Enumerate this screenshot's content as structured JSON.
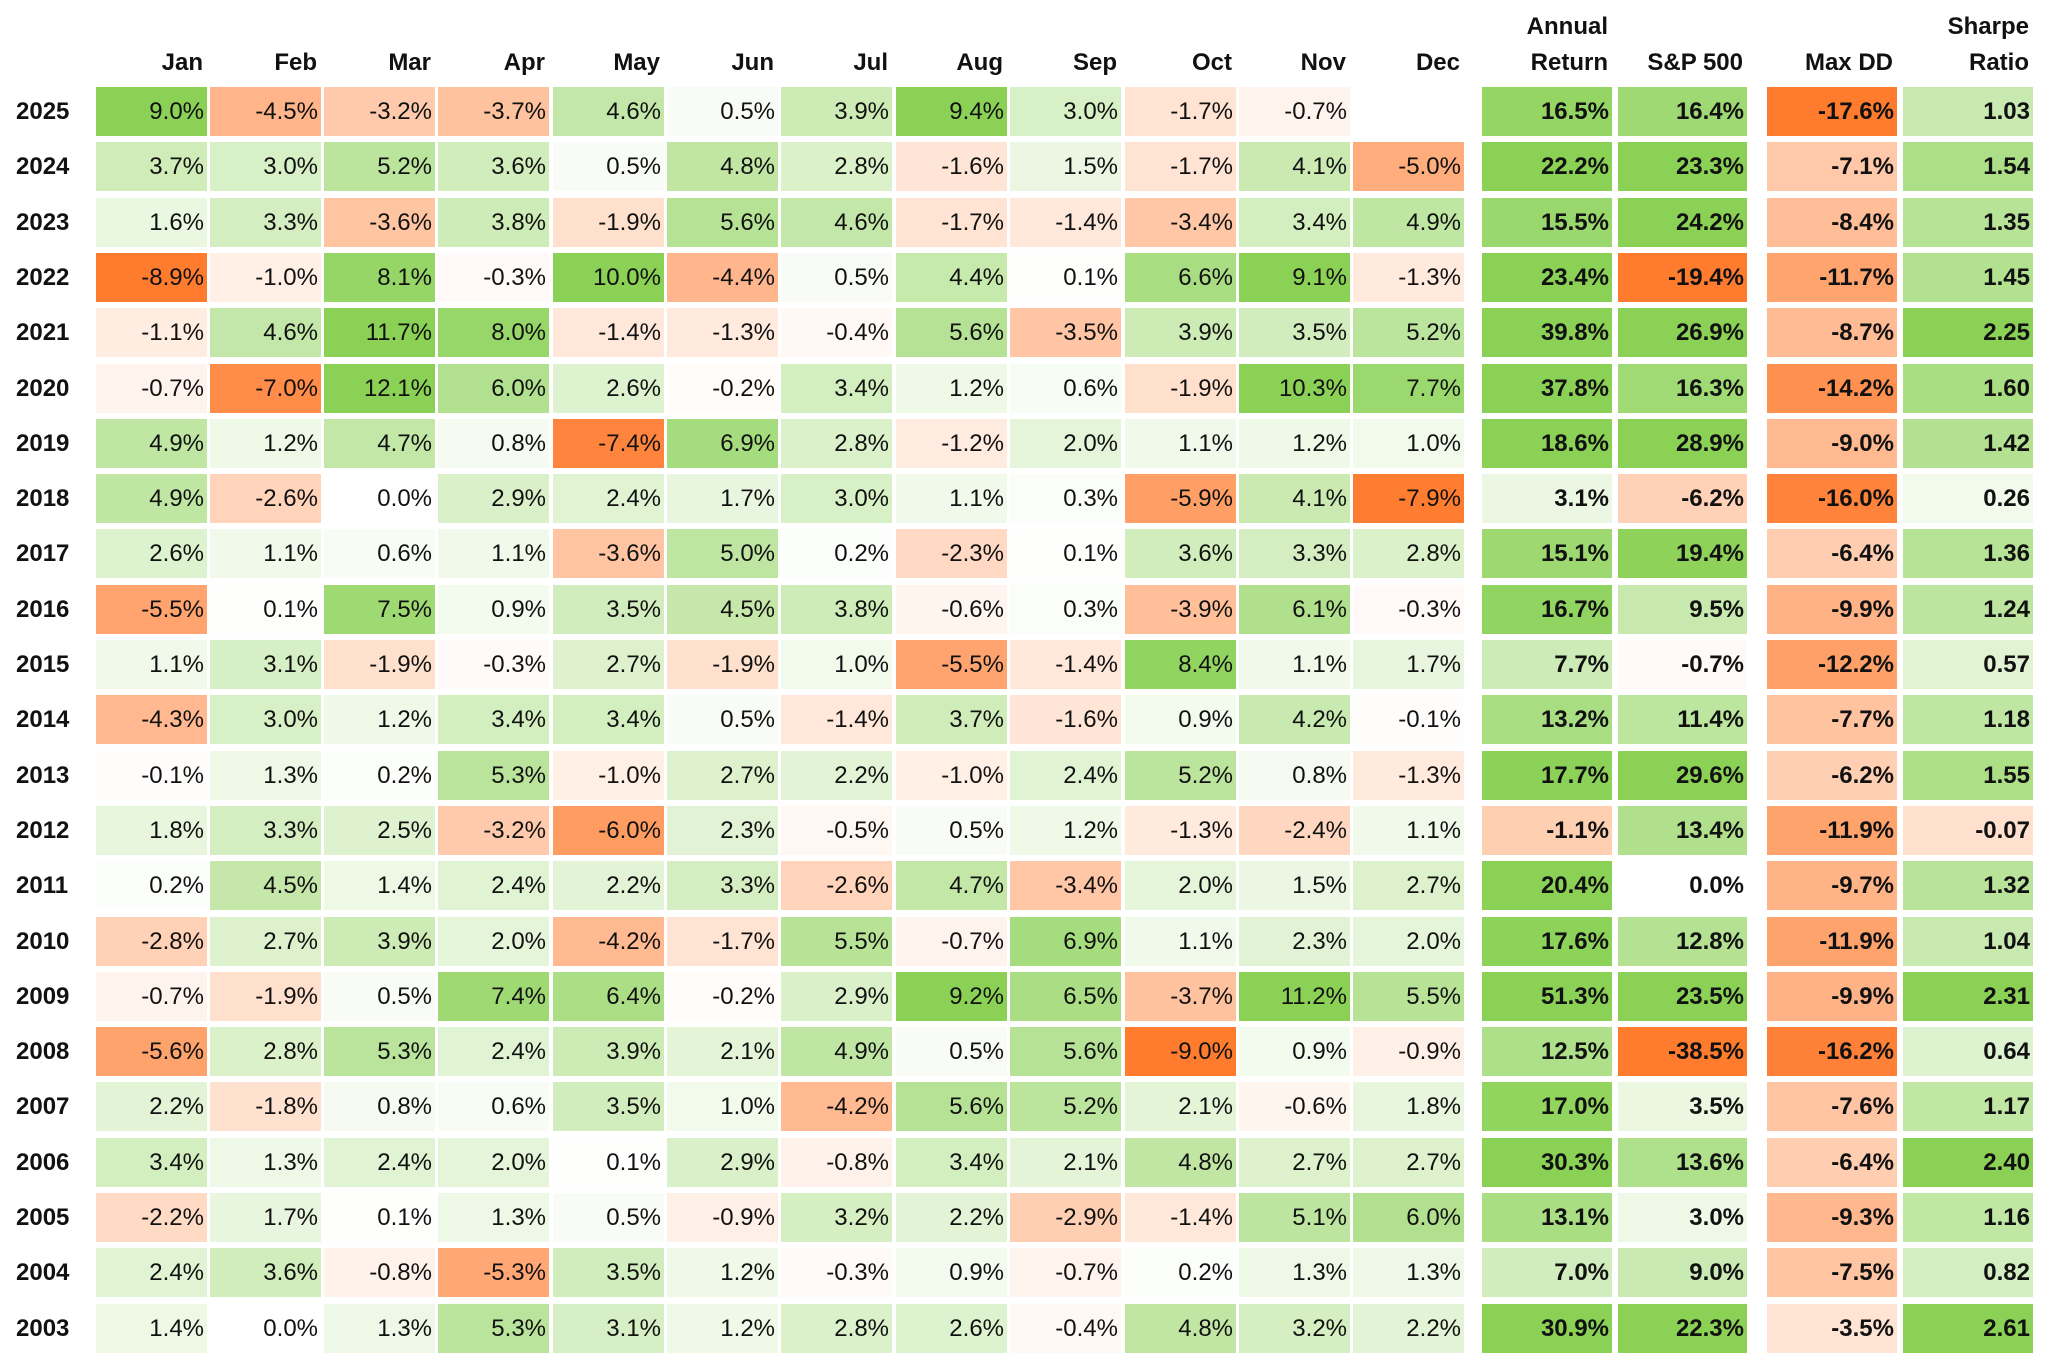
{
  "chart_data": {
    "type": "heatmap",
    "columns": [
      "Jan",
      "Feb",
      "Mar",
      "Apr",
      "May",
      "Jun",
      "Jul",
      "Aug",
      "Sep",
      "Oct",
      "Nov",
      "Dec"
    ],
    "summary_columns": [
      {
        "key": "annual_return",
        "label_lines": [
          "Annual",
          "Return"
        ]
      },
      {
        "key": "sp500",
        "label_lines": [
          "S&P 500"
        ]
      },
      {
        "key": "max_dd",
        "label_lines": [
          "Max DD"
        ]
      },
      {
        "key": "sharpe",
        "label_lines": [
          "Sharpe",
          "Ratio"
        ]
      }
    ],
    "color_scale": {
      "negative": "#ff7b2e",
      "neutral": "#ffffff",
      "positive": "#8ad155"
    },
    "rows": [
      {
        "year": "2025",
        "months": [
          "9.0%",
          "-4.5%",
          "-3.2%",
          "-3.7%",
          "4.6%",
          "0.5%",
          "3.9%",
          "9.4%",
          "3.0%",
          "-1.7%",
          "-0.7%",
          ""
        ],
        "annual_return": "16.5%",
        "sp500": "16.4%",
        "max_dd": "-17.6%",
        "sharpe": "1.03"
      },
      {
        "year": "2024",
        "months": [
          "3.7%",
          "3.0%",
          "5.2%",
          "3.6%",
          "0.5%",
          "4.8%",
          "2.8%",
          "-1.6%",
          "1.5%",
          "-1.7%",
          "4.1%",
          "-5.0%"
        ],
        "annual_return": "22.2%",
        "sp500": "23.3%",
        "max_dd": "-7.1%",
        "sharpe": "1.54"
      },
      {
        "year": "2023",
        "months": [
          "1.6%",
          "3.3%",
          "-3.6%",
          "3.8%",
          "-1.9%",
          "5.6%",
          "4.6%",
          "-1.7%",
          "-1.4%",
          "-3.4%",
          "3.4%",
          "4.9%"
        ],
        "annual_return": "15.5%",
        "sp500": "24.2%",
        "max_dd": "-8.4%",
        "sharpe": "1.35"
      },
      {
        "year": "2022",
        "months": [
          "-8.9%",
          "-1.0%",
          "8.1%",
          "-0.3%",
          "10.0%",
          "-4.4%",
          "0.5%",
          "4.4%",
          "0.1%",
          "6.6%",
          "9.1%",
          "-1.3%"
        ],
        "annual_return": "23.4%",
        "sp500": "-19.4%",
        "max_dd": "-11.7%",
        "sharpe": "1.45"
      },
      {
        "year": "2021",
        "months": [
          "-1.1%",
          "4.6%",
          "11.7%",
          "8.0%",
          "-1.4%",
          "-1.3%",
          "-0.4%",
          "5.6%",
          "-3.5%",
          "3.9%",
          "3.5%",
          "5.2%"
        ],
        "annual_return": "39.8%",
        "sp500": "26.9%",
        "max_dd": "-8.7%",
        "sharpe": "2.25"
      },
      {
        "year": "2020",
        "months": [
          "-0.7%",
          "-7.0%",
          "12.1%",
          "6.0%",
          "2.6%",
          "-0.2%",
          "3.4%",
          "1.2%",
          "0.6%",
          "-1.9%",
          "10.3%",
          "7.7%"
        ],
        "annual_return": "37.8%",
        "sp500": "16.3%",
        "max_dd": "-14.2%",
        "sharpe": "1.60"
      },
      {
        "year": "2019",
        "months": [
          "4.9%",
          "1.2%",
          "4.7%",
          "0.8%",
          "-7.4%",
          "6.9%",
          "2.8%",
          "-1.2%",
          "2.0%",
          "1.1%",
          "1.2%",
          "1.0%"
        ],
        "annual_return": "18.6%",
        "sp500": "28.9%",
        "max_dd": "-9.0%",
        "sharpe": "1.42"
      },
      {
        "year": "2018",
        "months": [
          "4.9%",
          "-2.6%",
          "0.0%",
          "2.9%",
          "2.4%",
          "1.7%",
          "3.0%",
          "1.1%",
          "0.3%",
          "-5.9%",
          "4.1%",
          "-7.9%"
        ],
        "annual_return": "3.1%",
        "sp500": "-6.2%",
        "max_dd": "-16.0%",
        "sharpe": "0.26"
      },
      {
        "year": "2017",
        "months": [
          "2.6%",
          "1.1%",
          "0.6%",
          "1.1%",
          "-3.6%",
          "5.0%",
          "0.2%",
          "-2.3%",
          "0.1%",
          "3.6%",
          "3.3%",
          "2.8%"
        ],
        "annual_return": "15.1%",
        "sp500": "19.4%",
        "max_dd": "-6.4%",
        "sharpe": "1.36"
      },
      {
        "year": "2016",
        "months": [
          "-5.5%",
          "0.1%",
          "7.5%",
          "0.9%",
          "3.5%",
          "4.5%",
          "3.8%",
          "-0.6%",
          "0.3%",
          "-3.9%",
          "6.1%",
          "-0.3%"
        ],
        "annual_return": "16.7%",
        "sp500": "9.5%",
        "max_dd": "-9.9%",
        "sharpe": "1.24"
      },
      {
        "year": "2015",
        "months": [
          "1.1%",
          "3.1%",
          "-1.9%",
          "-0.3%",
          "2.7%",
          "-1.9%",
          "1.0%",
          "-5.5%",
          "-1.4%",
          "8.4%",
          "1.1%",
          "1.7%"
        ],
        "annual_return": "7.7%",
        "sp500": "-0.7%",
        "max_dd": "-12.2%",
        "sharpe": "0.57"
      },
      {
        "year": "2014",
        "months": [
          "-4.3%",
          "3.0%",
          "1.2%",
          "3.4%",
          "3.4%",
          "0.5%",
          "-1.4%",
          "3.7%",
          "-1.6%",
          "0.9%",
          "4.2%",
          "-0.1%"
        ],
        "annual_return": "13.2%",
        "sp500": "11.4%",
        "max_dd": "-7.7%",
        "sharpe": "1.18"
      },
      {
        "year": "2013",
        "months": [
          "-0.1%",
          "1.3%",
          "0.2%",
          "5.3%",
          "-1.0%",
          "2.7%",
          "2.2%",
          "-1.0%",
          "2.4%",
          "5.2%",
          "0.8%",
          "-1.3%"
        ],
        "annual_return": "17.7%",
        "sp500": "29.6%",
        "max_dd": "-6.2%",
        "sharpe": "1.55"
      },
      {
        "year": "2012",
        "months": [
          "1.8%",
          "3.3%",
          "2.5%",
          "-3.2%",
          "-6.0%",
          "2.3%",
          "-0.5%",
          "0.5%",
          "1.2%",
          "-1.3%",
          "-2.4%",
          "1.1%"
        ],
        "annual_return": "-1.1%",
        "sp500": "13.4%",
        "max_dd": "-11.9%",
        "sharpe": "-0.07"
      },
      {
        "year": "2011",
        "months": [
          "0.2%",
          "4.5%",
          "1.4%",
          "2.4%",
          "2.2%",
          "3.3%",
          "-2.6%",
          "4.7%",
          "-3.4%",
          "2.0%",
          "1.5%",
          "2.7%"
        ],
        "annual_return": "20.4%",
        "sp500": "0.0%",
        "max_dd": "-9.7%",
        "sharpe": "1.32"
      },
      {
        "year": "2010",
        "months": [
          "-2.8%",
          "2.7%",
          "3.9%",
          "2.0%",
          "-4.2%",
          "-1.7%",
          "5.5%",
          "-0.7%",
          "6.9%",
          "1.1%",
          "2.3%",
          "2.0%"
        ],
        "annual_return": "17.6%",
        "sp500": "12.8%",
        "max_dd": "-11.9%",
        "sharpe": "1.04"
      },
      {
        "year": "2009",
        "months": [
          "-0.7%",
          "-1.9%",
          "0.5%",
          "7.4%",
          "6.4%",
          "-0.2%",
          "2.9%",
          "9.2%",
          "6.5%",
          "-3.7%",
          "11.2%",
          "5.5%"
        ],
        "annual_return": "51.3%",
        "sp500": "23.5%",
        "max_dd": "-9.9%",
        "sharpe": "2.31"
      },
      {
        "year": "2008",
        "months": [
          "-5.6%",
          "2.8%",
          "5.3%",
          "2.4%",
          "3.9%",
          "2.1%",
          "4.9%",
          "0.5%",
          "5.6%",
          "-9.0%",
          "0.9%",
          "-0.9%"
        ],
        "annual_return": "12.5%",
        "sp500": "-38.5%",
        "max_dd": "-16.2%",
        "sharpe": "0.64"
      },
      {
        "year": "2007",
        "months": [
          "2.2%",
          "-1.8%",
          "0.8%",
          "0.6%",
          "3.5%",
          "1.0%",
          "-4.2%",
          "5.6%",
          "5.2%",
          "2.1%",
          "-0.6%",
          "1.8%"
        ],
        "annual_return": "17.0%",
        "sp500": "3.5%",
        "max_dd": "-7.6%",
        "sharpe": "1.17"
      },
      {
        "year": "2006",
        "months": [
          "3.4%",
          "1.3%",
          "2.4%",
          "2.0%",
          "0.1%",
          "2.9%",
          "-0.8%",
          "3.4%",
          "2.1%",
          "4.8%",
          "2.7%",
          "2.7%"
        ],
        "annual_return": "30.3%",
        "sp500": "13.6%",
        "max_dd": "-6.4%",
        "sharpe": "2.40"
      },
      {
        "year": "2005",
        "months": [
          "-2.2%",
          "1.7%",
          "0.1%",
          "1.3%",
          "0.5%",
          "-0.9%",
          "3.2%",
          "2.2%",
          "-2.9%",
          "-1.4%",
          "5.1%",
          "6.0%"
        ],
        "annual_return": "13.1%",
        "sp500": "3.0%",
        "max_dd": "-9.3%",
        "sharpe": "1.16"
      },
      {
        "year": "2004",
        "months": [
          "2.4%",
          "3.6%",
          "-0.8%",
          "-5.3%",
          "3.5%",
          "1.2%",
          "-0.3%",
          "0.9%",
          "-0.7%",
          "0.2%",
          "1.3%",
          "1.3%"
        ],
        "annual_return": "7.0%",
        "sp500": "9.0%",
        "max_dd": "-7.5%",
        "sharpe": "0.82"
      },
      {
        "year": "2003",
        "months": [
          "1.4%",
          "0.0%",
          "1.3%",
          "5.3%",
          "3.1%",
          "1.2%",
          "2.8%",
          "2.6%",
          "-0.4%",
          "4.8%",
          "3.2%",
          "2.2%"
        ],
        "annual_return": "30.9%",
        "sp500": "22.3%",
        "max_dd": "-3.5%",
        "sharpe": "2.61"
      }
    ]
  }
}
